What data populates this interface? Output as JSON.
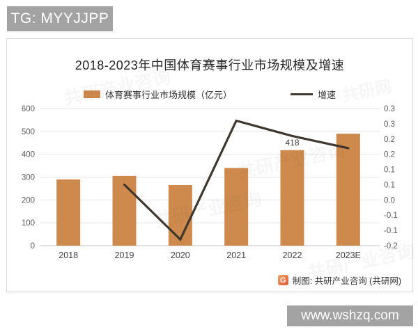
{
  "page": {
    "top_badge": "TG: MYYJJPP",
    "bottom_badge": "www.wshzq.com",
    "watermark_text": "共研产业咨询",
    "watermark_text_alt": "共研网"
  },
  "chart": {
    "title": "2018-2023年中国体育赛事行业市场规模及增速",
    "legend": [
      {
        "label": "体育赛事行业市场规模（亿元）",
        "type": "bar"
      },
      {
        "label": "增速",
        "type": "line"
      }
    ],
    "footer_label": "制图: 共研产业咨询 (共研网)",
    "footer_logo_glyph": "G"
  },
  "colors": {
    "bar": "#CE8A4D",
    "line": "#3F362E",
    "axis_text": "#595959",
    "grid": "#e4e4e4",
    "baseline": "#c0c0c0",
    "badge_bg": "#a3a3a3"
  },
  "chart_data": {
    "type": "bar",
    "subtype": "combo-bar-line",
    "title": "2018-2023年中国体育赛事行业市场规模及增速",
    "categories": [
      "2018",
      "2019",
      "2020",
      "2021",
      "2022",
      "2023E"
    ],
    "series": [
      {
        "name": "体育赛事行业市场规模（亿元）",
        "type": "bar",
        "axis": "left",
        "color": "#CE8A4D",
        "values": [
          290,
          305,
          265,
          340,
          418,
          490
        ],
        "data_labels": [
          "",
          "",
          "",
          "",
          "418",
          ""
        ]
      },
      {
        "name": "增速",
        "type": "line",
        "axis": "right",
        "color": "#3F362E",
        "values": [
          null,
          0.05,
          -0.13,
          0.26,
          0.21,
          0.17
        ]
      }
    ],
    "left_axis": {
      "min": 0,
      "max": 600,
      "step": 100,
      "tick_labels": [
        "600",
        "500",
        "400",
        "300",
        "200",
        "100",
        "0"
      ]
    },
    "right_axis": {
      "top": 0.3,
      "bottom": -0.15,
      "tick_labels": [
        "0.3",
        "0.3",
        "0.2",
        "0.2",
        "0.1",
        "0.1",
        "0.0",
        "-0.1",
        "-0.1",
        "-0.2"
      ]
    },
    "grid": true,
    "legend_position": "top"
  }
}
